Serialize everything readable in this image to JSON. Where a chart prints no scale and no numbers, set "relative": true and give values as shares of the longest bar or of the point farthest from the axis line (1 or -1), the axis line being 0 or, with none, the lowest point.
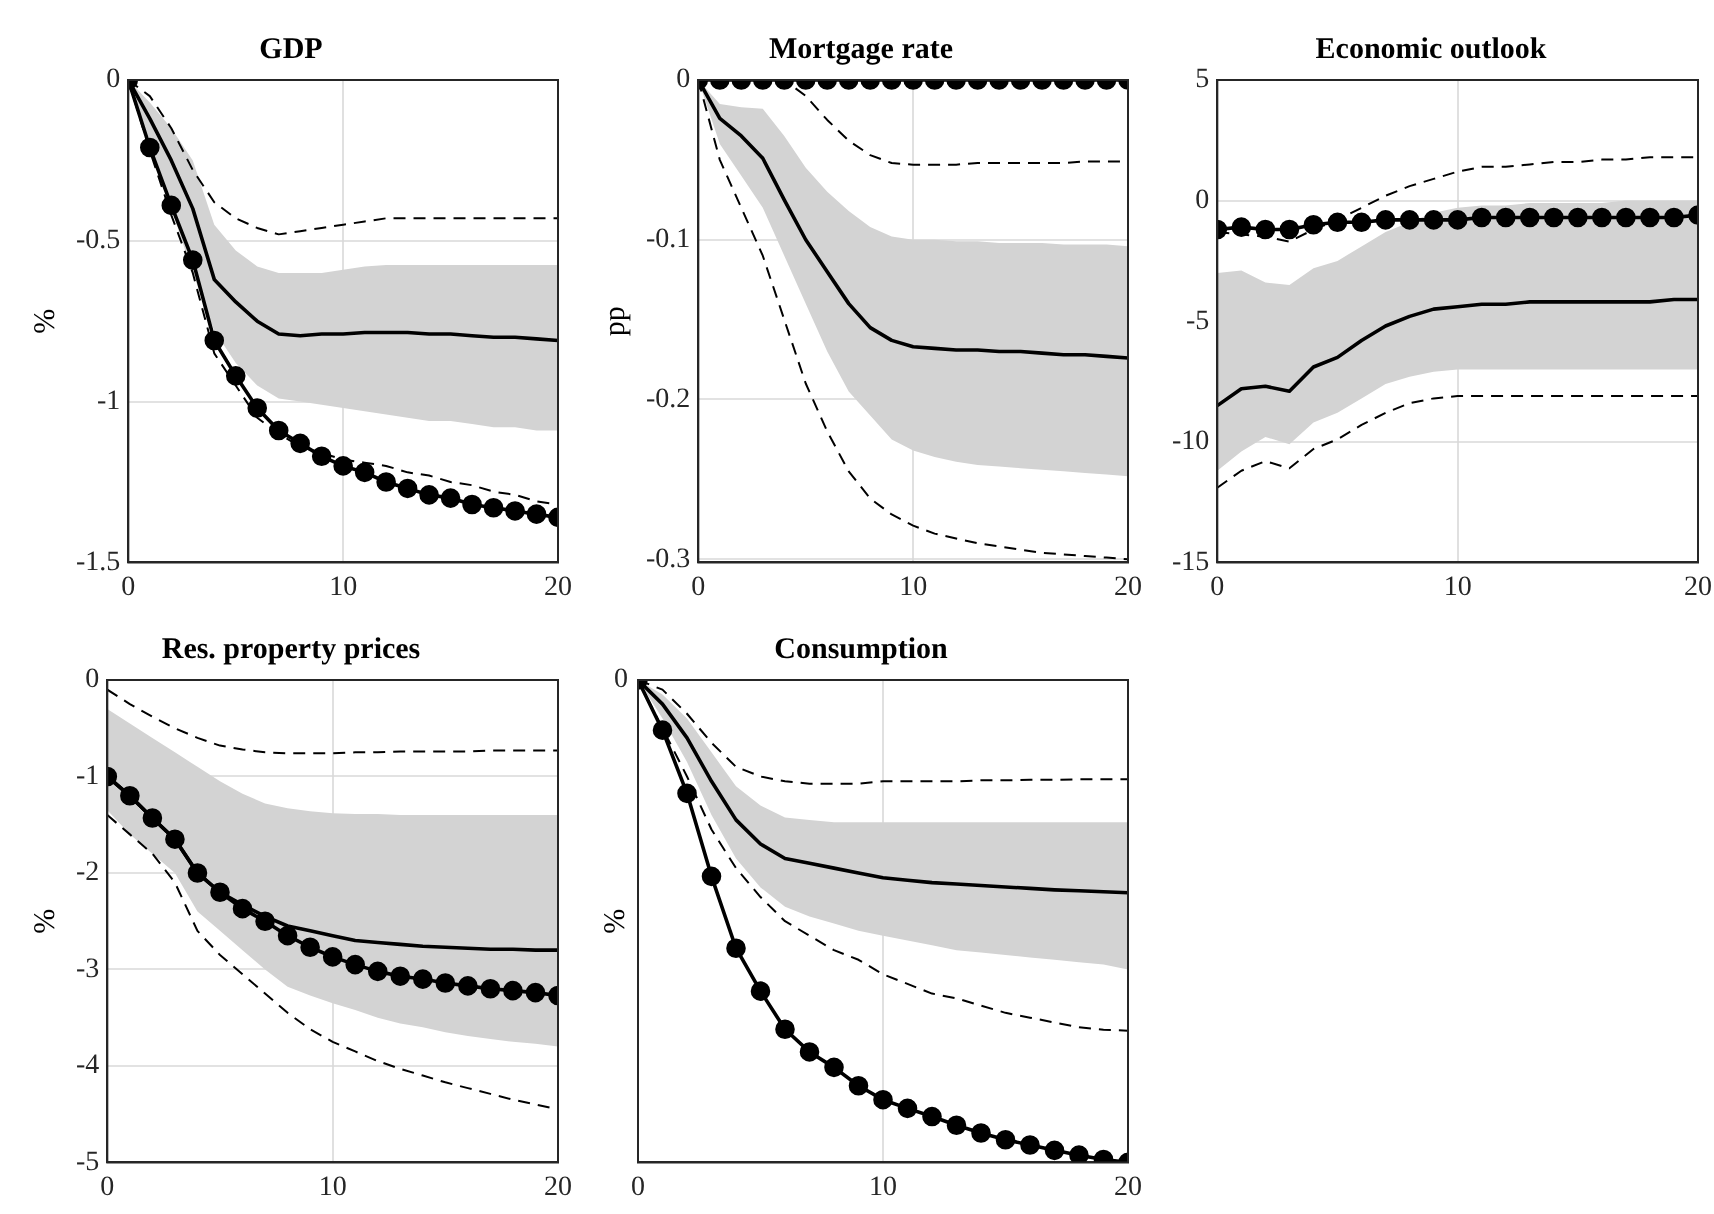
{
  "chart_data": [
    {
      "type": "line",
      "title": "GDP",
      "ylabel": "%",
      "x": [
        0,
        1,
        2,
        3,
        4,
        5,
        6,
        7,
        8,
        9,
        10,
        11,
        12,
        13,
        14,
        15,
        16,
        17,
        18,
        19,
        20
      ],
      "xlim": [
        0,
        20
      ],
      "xticks": [
        0,
        10,
        20
      ],
      "ylim": [
        -1.5,
        0
      ],
      "yticks": [
        -1.5,
        -1,
        -0.5,
        0
      ],
      "grid": true,
      "series": [
        {
          "color": "#000000",
          "line_style": "solid",
          "values": [
            0,
            -0.12,
            -0.25,
            -0.4,
            -0.62,
            -0.69,
            -0.75,
            -0.79,
            -0.795,
            -0.79,
            -0.79,
            -0.785,
            -0.785,
            -0.785,
            -0.79,
            -0.79,
            -0.795,
            -0.8,
            -0.8,
            -0.805,
            -0.81
          ],
          "lower": [
            0,
            -0.2,
            -0.4,
            -0.6,
            -0.78,
            -0.88,
            -0.95,
            -0.99,
            -1.0,
            -1.01,
            -1.02,
            -1.03,
            -1.04,
            -1.05,
            -1.06,
            -1.06,
            -1.07,
            -1.08,
            -1.08,
            -1.09,
            -1.09
          ],
          "upper": [
            0,
            -0.07,
            -0.15,
            -0.25,
            -0.45,
            -0.53,
            -0.58,
            -0.6,
            -0.6,
            -0.6,
            -0.59,
            -0.58,
            -0.575,
            -0.575,
            -0.575,
            -0.575,
            -0.575,
            -0.575,
            -0.575,
            -0.575,
            -0.575
          ]
        },
        {
          "color": "#000000",
          "line_style": "dashed",
          "values": [
            0,
            -0.05,
            -0.15,
            -0.28,
            -0.38,
            -0.43,
            -0.46,
            -0.48,
            -0.47,
            -0.46,
            -0.45,
            -0.44,
            -0.43,
            -0.43,
            -0.43,
            -0.43,
            -0.43,
            -0.43,
            -0.43,
            -0.43,
            -0.43
          ]
        },
        {
          "color": "#000000",
          "line_style": "dashed",
          "values": [
            0,
            -0.22,
            -0.42,
            -0.6,
            -0.85,
            -0.95,
            -1.05,
            -1.1,
            -1.14,
            -1.16,
            -1.18,
            -1.19,
            -1.2,
            -1.22,
            -1.23,
            -1.25,
            -1.26,
            -1.28,
            -1.29,
            -1.31,
            -1.32
          ]
        },
        {
          "color": "#000000",
          "line_style": "solid",
          "marker": "circle",
          "values": [
            0,
            -0.21,
            -0.39,
            -0.56,
            -0.81,
            -0.92,
            -1.02,
            -1.09,
            -1.13,
            -1.17,
            -1.2,
            -1.22,
            -1.25,
            -1.27,
            -1.29,
            -1.3,
            -1.32,
            -1.33,
            -1.34,
            -1.35,
            -1.36
          ]
        }
      ]
    },
    {
      "type": "line",
      "title": "Mortgage rate",
      "ylabel": "pp",
      "x": [
        0,
        1,
        2,
        3,
        4,
        5,
        6,
        7,
        8,
        9,
        10,
        11,
        12,
        13,
        14,
        15,
        16,
        17,
        18,
        19,
        20
      ],
      "xlim": [
        0,
        20
      ],
      "xticks": [
        0,
        10,
        20
      ],
      "ylim": [
        -0.302,
        0
      ],
      "yticks": [
        -0.3,
        -0.2,
        -0.1,
        0
      ],
      "grid": true,
      "series": [
        {
          "color": "#000000",
          "line_style": "solid",
          "values": [
            0,
            -0.024,
            -0.035,
            -0.049,
            -0.075,
            -0.1,
            -0.12,
            -0.14,
            -0.155,
            -0.163,
            -0.167,
            -0.168,
            -0.169,
            -0.169,
            -0.17,
            -0.17,
            -0.171,
            -0.172,
            -0.172,
            -0.173,
            -0.174
          ],
          "lower": [
            0,
            -0.04,
            -0.06,
            -0.08,
            -0.11,
            -0.14,
            -0.17,
            -0.195,
            -0.21,
            -0.225,
            -0.232,
            -0.236,
            -0.239,
            -0.241,
            -0.242,
            -0.243,
            -0.244,
            -0.245,
            -0.246,
            -0.247,
            -0.248
          ],
          "upper": [
            0,
            -0.015,
            -0.017,
            -0.018,
            -0.035,
            -0.055,
            -0.07,
            -0.082,
            -0.092,
            -0.098,
            -0.1,
            -0.1,
            -0.101,
            -0.101,
            -0.102,
            -0.102,
            -0.102,
            -0.103,
            -0.103,
            -0.103,
            -0.104
          ]
        },
        {
          "color": "#000000",
          "line_style": "dashed",
          "values": [
            0,
            0,
            0,
            0,
            0,
            -0.01,
            -0.025,
            -0.038,
            -0.047,
            -0.052,
            -0.053,
            -0.053,
            -0.053,
            -0.052,
            -0.052,
            -0.052,
            -0.052,
            -0.052,
            -0.051,
            -0.051,
            -0.051
          ]
        },
        {
          "color": "#000000",
          "line_style": "dashed",
          "values": [
            0,
            -0.05,
            -0.08,
            -0.11,
            -0.15,
            -0.19,
            -0.22,
            -0.245,
            -0.262,
            -0.272,
            -0.279,
            -0.284,
            -0.287,
            -0.29,
            -0.292,
            -0.294,
            -0.296,
            -0.297,
            -0.298,
            -0.299,
            -0.3
          ]
        },
        {
          "color": "#000000",
          "line_style": "solid",
          "marker": "circle",
          "values": [
            0,
            0,
            0,
            0,
            0,
            0,
            0,
            0,
            0,
            0,
            0,
            0,
            0,
            0,
            0,
            0,
            0,
            0,
            0,
            0,
            0
          ]
        }
      ]
    },
    {
      "type": "line",
      "title": "Economic outlook",
      "x": [
        0,
        1,
        2,
        3,
        4,
        5,
        6,
        7,
        8,
        9,
        10,
        11,
        12,
        13,
        14,
        15,
        16,
        17,
        18,
        19,
        20
      ],
      "xlim": [
        0,
        20
      ],
      "xticks": [
        0,
        10,
        20
      ],
      "ylim": [
        -15,
        5
      ],
      "yticks": [
        -15,
        -10,
        -5,
        0,
        5
      ],
      "grid": true,
      "series": [
        {
          "color": "#000000",
          "line_style": "solid",
          "values": [
            -8.5,
            -7.8,
            -7.7,
            -7.9,
            -6.9,
            -6.5,
            -5.8,
            -5.2,
            -4.8,
            -4.5,
            -4.4,
            -4.3,
            -4.3,
            -4.2,
            -4.2,
            -4.2,
            -4.2,
            -4.2,
            -4.2,
            -4.1,
            -4.1
          ],
          "lower": [
            -11.2,
            -10.4,
            -9.8,
            -10.1,
            -9.2,
            -8.8,
            -8.2,
            -7.6,
            -7.3,
            -7.1,
            -7,
            -7,
            -7,
            -7,
            -7,
            -7,
            -7,
            -7,
            -7,
            -7,
            -7
          ],
          "upper": [
            -3,
            -2.9,
            -3.4,
            -3.5,
            -2.8,
            -2.5,
            -1.9,
            -1.3,
            -0.9,
            -0.5,
            -0.3,
            -0.2,
            -0.2,
            -0.1,
            -0.1,
            -0.1,
            -0.1,
            0,
            0,
            0,
            0
          ]
        },
        {
          "color": "#000000",
          "line_style": "dashed",
          "values": [
            -1.3,
            -1.4,
            -1.5,
            -1.7,
            -1.2,
            -0.8,
            -0.3,
            0.2,
            0.6,
            0.9,
            1.2,
            1.4,
            1.4,
            1.5,
            1.6,
            1.6,
            1.7,
            1.7,
            1.8,
            1.8,
            1.8
          ]
        },
        {
          "color": "#000000",
          "line_style": "dashed",
          "values": [
            -11.9,
            -11.2,
            -10.8,
            -11.1,
            -10.3,
            -9.9,
            -9.3,
            -8.8,
            -8.4,
            -8.2,
            -8.1,
            -8.1,
            -8.1,
            -8.1,
            -8.1,
            -8.1,
            -8.1,
            -8.1,
            -8.1,
            -8.1,
            -8.1
          ]
        },
        {
          "color": "#000000",
          "line_style": "solid",
          "marker": "circle",
          "values": [
            -1.2,
            -1.1,
            -1.2,
            -1.2,
            -1,
            -0.9,
            -0.9,
            -0.8,
            -0.8,
            -0.8,
            -0.8,
            -0.7,
            -0.7,
            -0.7,
            -0.7,
            -0.7,
            -0.7,
            -0.7,
            -0.7,
            -0.7,
            -0.6
          ]
        }
      ]
    },
    {
      "type": "line",
      "title": "Res. property prices",
      "ylabel": "%",
      "x": [
        0,
        1,
        2,
        3,
        4,
        5,
        6,
        7,
        8,
        9,
        10,
        11,
        12,
        13,
        14,
        15,
        16,
        17,
        18,
        19,
        20
      ],
      "xlim": [
        0,
        20
      ],
      "xticks": [
        0,
        10,
        20
      ],
      "ylim": [
        -5,
        0
      ],
      "yticks": [
        -5,
        -4,
        -3,
        -2,
        -1,
        0
      ],
      "grid": true,
      "series": [
        {
          "color": "#000000",
          "line_style": "solid",
          "values": [
            -1,
            -1.2,
            -1.43,
            -1.65,
            -2,
            -2.2,
            -2.33,
            -2.45,
            -2.55,
            -2.6,
            -2.65,
            -2.7,
            -2.72,
            -2.74,
            -2.76,
            -2.77,
            -2.78,
            -2.79,
            -2.79,
            -2.8,
            -2.8
          ],
          "lower": [
            -1.35,
            -1.6,
            -1.8,
            -2,
            -2.4,
            -2.6,
            -2.8,
            -3,
            -3.18,
            -3.27,
            -3.35,
            -3.42,
            -3.5,
            -3.56,
            -3.6,
            -3.65,
            -3.69,
            -3.72,
            -3.75,
            -3.77,
            -3.8
          ],
          "upper": [
            -0.3,
            -0.45,
            -0.6,
            -0.75,
            -0.9,
            -1.05,
            -1.18,
            -1.28,
            -1.33,
            -1.36,
            -1.38,
            -1.39,
            -1.39,
            -1.4,
            -1.4,
            -1.4,
            -1.4,
            -1.4,
            -1.4,
            -1.4,
            -1.4
          ]
        },
        {
          "color": "#000000",
          "line_style": "dashed",
          "values": [
            -0.1,
            -0.25,
            -0.38,
            -0.5,
            -0.6,
            -0.68,
            -0.72,
            -0.75,
            -0.76,
            -0.76,
            -0.76,
            -0.75,
            -0.75,
            -0.74,
            -0.74,
            -0.74,
            -0.74,
            -0.73,
            -0.73,
            -0.73,
            -0.73
          ]
        },
        {
          "color": "#000000",
          "line_style": "dashed",
          "values": [
            -1.4,
            -1.6,
            -1.8,
            -2.1,
            -2.6,
            -2.85,
            -3.05,
            -3.25,
            -3.45,
            -3.62,
            -3.75,
            -3.85,
            -3.95,
            -4.03,
            -4.1,
            -4.17,
            -4.23,
            -4.29,
            -4.35,
            -4.4,
            -4.45
          ]
        },
        {
          "color": "#000000",
          "line_style": "solid",
          "marker": "circle",
          "values": [
            -1,
            -1.2,
            -1.43,
            -1.65,
            -2,
            -2.2,
            -2.37,
            -2.5,
            -2.65,
            -2.77,
            -2.87,
            -2.95,
            -3.02,
            -3.07,
            -3.1,
            -3.14,
            -3.17,
            -3.2,
            -3.22,
            -3.24,
            -3.27
          ]
        }
      ]
    },
    {
      "type": "line",
      "title": "Consumption",
      "ylabel": "%",
      "relative": true,
      "annotations": [
        {
          "text": "0",
          "x": 0,
          "y": 0
        }
      ],
      "x": [
        0,
        1,
        2,
        3,
        4,
        5,
        6,
        7,
        8,
        9,
        10,
        11,
        12,
        13,
        14,
        15,
        16,
        17,
        18,
        19,
        20
      ],
      "xlim": [
        0,
        20
      ],
      "xticks": [
        0,
        10,
        20
      ],
      "grid": "x",
      "series": [
        {
          "color": "#000000",
          "line_style": "solid",
          "values": [
            0,
            -0.05,
            -0.12,
            -0.21,
            -0.29,
            -0.34,
            -0.37,
            -0.38,
            -0.39,
            -0.4,
            -0.41,
            -0.415,
            -0.42,
            -0.423,
            -0.426,
            -0.429,
            -0.432,
            -0.435,
            -0.437,
            -0.439,
            -0.441
          ],
          "lower": [
            0,
            -0.08,
            -0.17,
            -0.28,
            -0.37,
            -0.43,
            -0.47,
            -0.49,
            -0.505,
            -0.52,
            -0.53,
            -0.54,
            -0.55,
            -0.56,
            -0.565,
            -0.57,
            -0.575,
            -0.58,
            -0.585,
            -0.59,
            -0.6
          ],
          "upper": [
            0,
            -0.03,
            -0.08,
            -0.15,
            -0.22,
            -0.26,
            -0.285,
            -0.29,
            -0.295,
            -0.295,
            -0.295,
            -0.295,
            -0.295,
            -0.295,
            -0.295,
            -0.295,
            -0.295,
            -0.295,
            -0.295,
            -0.295,
            -0.295
          ]
        },
        {
          "color": "#000000",
          "line_style": "dashed",
          "values": [
            0,
            -0.02,
            -0.07,
            -0.13,
            -0.18,
            -0.2,
            -0.21,
            -0.215,
            -0.215,
            -0.215,
            -0.21,
            -0.21,
            -0.21,
            -0.21,
            -0.208,
            -0.208,
            -0.207,
            -0.207,
            -0.206,
            -0.206,
            -0.206
          ]
        },
        {
          "color": "#000000",
          "line_style": "dashed",
          "values": [
            0,
            -0.1,
            -0.2,
            -0.31,
            -0.39,
            -0.45,
            -0.5,
            -0.53,
            -0.56,
            -0.58,
            -0.61,
            -0.63,
            -0.65,
            -0.66,
            -0.675,
            -0.69,
            -0.7,
            -0.71,
            -0.72,
            -0.725,
            -0.727
          ]
        },
        {
          "color": "#000000",
          "line_style": "solid",
          "marker": "circle",
          "values": [
            0,
            -0.104,
            -0.235,
            -0.407,
            -0.556,
            -0.645,
            -0.724,
            -0.771,
            -0.803,
            -0.841,
            -0.87,
            -0.888,
            -0.905,
            -0.923,
            -0.939,
            -0.953,
            -0.964,
            -0.975,
            -0.985,
            -0.994,
            -1
          ]
        }
      ]
    }
  ]
}
